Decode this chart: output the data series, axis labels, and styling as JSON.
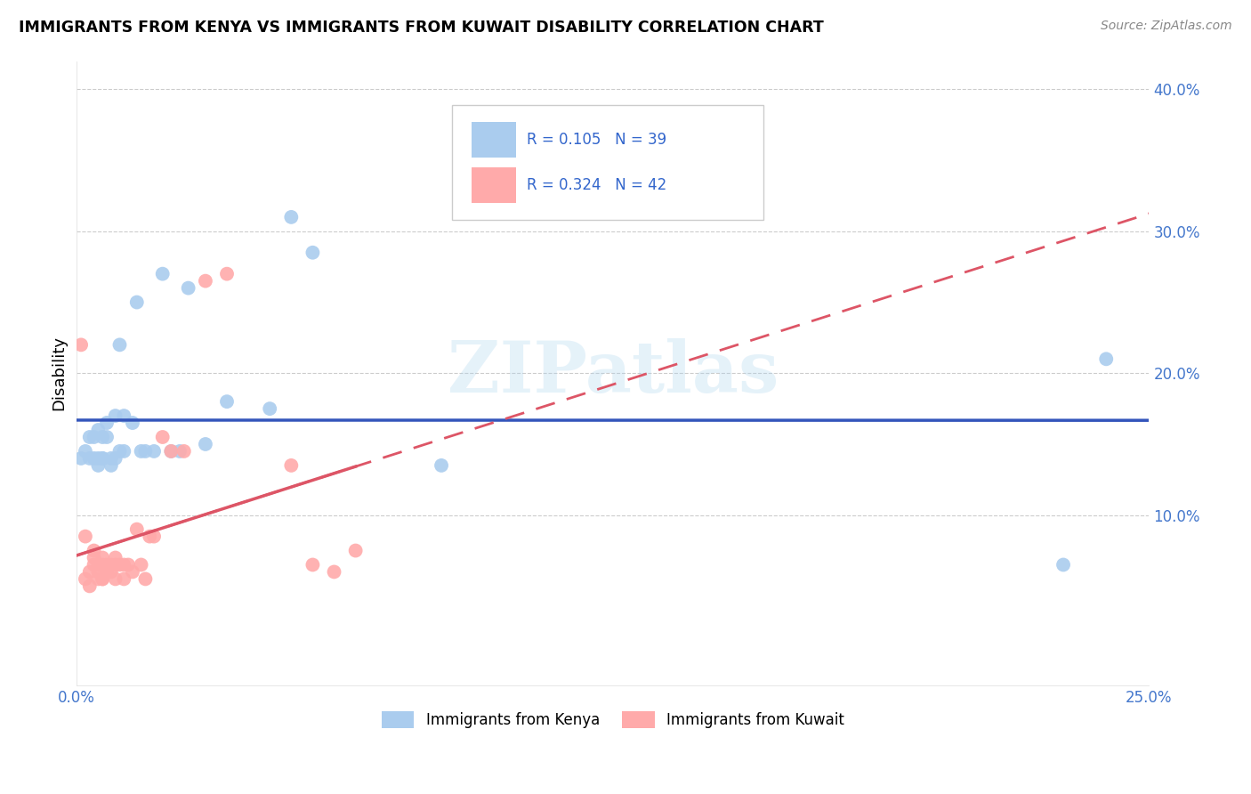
{
  "title": "IMMIGRANTS FROM KENYA VS IMMIGRANTS FROM KUWAIT DISABILITY CORRELATION CHART",
  "source": "Source: ZipAtlas.com",
  "ylabel": "Disability",
  "xlim": [
    0.0,
    0.25
  ],
  "ylim": [
    -0.02,
    0.42
  ],
  "xticks": [
    0.0,
    0.05,
    0.1,
    0.15,
    0.2,
    0.25
  ],
  "yticks": [
    0.1,
    0.2,
    0.3,
    0.4
  ],
  "grid_color": "#cccccc",
  "background_color": "#ffffff",
  "kenya_color": "#aaccee",
  "kuwait_color": "#ffaaaa",
  "kenya_line_color": "#3355bb",
  "kuwait_line_color": "#dd5566",
  "kenya_R": 0.105,
  "kenya_N": 39,
  "kuwait_R": 0.324,
  "kuwait_N": 42,
  "legend_R_color": "#3366cc",
  "tick_color": "#4477cc",
  "watermark_text": "ZIPatlas",
  "kenya_x": [
    0.001,
    0.002,
    0.003,
    0.003,
    0.004,
    0.004,
    0.005,
    0.005,
    0.005,
    0.006,
    0.006,
    0.006,
    0.007,
    0.007,
    0.008,
    0.008,
    0.009,
    0.009,
    0.01,
    0.01,
    0.011,
    0.011,
    0.013,
    0.014,
    0.015,
    0.016,
    0.018,
    0.02,
    0.022,
    0.024,
    0.026,
    0.03,
    0.035,
    0.045,
    0.05,
    0.055,
    0.085,
    0.23,
    0.24
  ],
  "kenya_y": [
    0.14,
    0.145,
    0.14,
    0.155,
    0.155,
    0.14,
    0.16,
    0.14,
    0.135,
    0.14,
    0.155,
    0.14,
    0.155,
    0.165,
    0.135,
    0.14,
    0.14,
    0.17,
    0.22,
    0.145,
    0.145,
    0.17,
    0.165,
    0.25,
    0.145,
    0.145,
    0.145,
    0.27,
    0.145,
    0.145,
    0.26,
    0.15,
    0.18,
    0.175,
    0.31,
    0.285,
    0.135,
    0.065,
    0.21
  ],
  "kuwait_x": [
    0.001,
    0.002,
    0.002,
    0.003,
    0.003,
    0.004,
    0.004,
    0.004,
    0.005,
    0.005,
    0.005,
    0.006,
    0.006,
    0.006,
    0.006,
    0.007,
    0.007,
    0.007,
    0.008,
    0.008,
    0.009,
    0.009,
    0.009,
    0.01,
    0.011,
    0.011,
    0.012,
    0.013,
    0.014,
    0.015,
    0.016,
    0.017,
    0.018,
    0.02,
    0.022,
    0.025,
    0.03,
    0.035,
    0.05,
    0.055,
    0.06,
    0.065
  ],
  "kuwait_y": [
    0.22,
    0.085,
    0.055,
    0.06,
    0.05,
    0.075,
    0.07,
    0.065,
    0.055,
    0.06,
    0.065,
    0.055,
    0.065,
    0.07,
    0.055,
    0.06,
    0.065,
    0.06,
    0.06,
    0.065,
    0.07,
    0.065,
    0.055,
    0.065,
    0.065,
    0.055,
    0.065,
    0.06,
    0.09,
    0.065,
    0.055,
    0.085,
    0.085,
    0.155,
    0.145,
    0.145,
    0.265,
    0.27,
    0.135,
    0.065,
    0.06,
    0.075
  ]
}
